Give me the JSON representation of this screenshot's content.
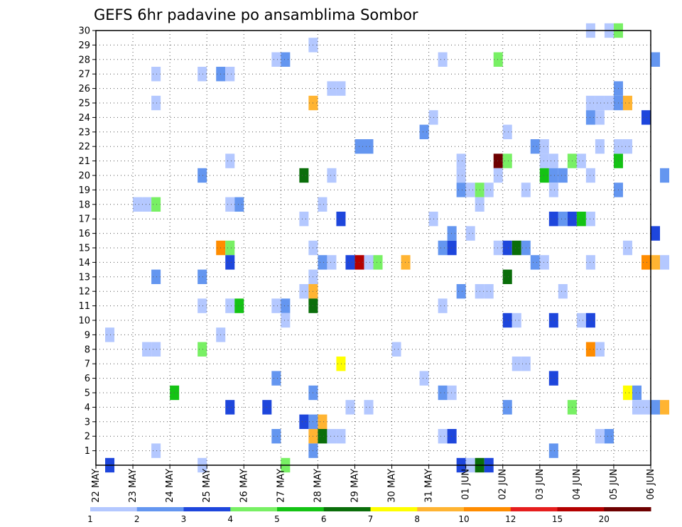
{
  "chart_data": {
    "type": "heatmap",
    "title": "GEFS 6hr padavine po ansamblima Sombor",
    "xlabel": "",
    "ylabel": "",
    "x_ticks": [
      "22 MAY",
      "23 MAY",
      "24 MAY",
      "25 MAY",
      "26 MAY",
      "27 MAY",
      "28 MAY",
      "29 MAY",
      "30 MAY",
      "31 MAY",
      "01 JUN",
      "02 JUN",
      "03 JUN",
      "04 JUN",
      "05 JUN",
      "06 JUN"
    ],
    "y_ticks": [
      "1",
      "2",
      "3",
      "4",
      "5",
      "6",
      "7",
      "8",
      "9",
      "10",
      "11",
      "12",
      "13",
      "14",
      "15",
      "16",
      "17",
      "18",
      "19",
      "20",
      "21",
      "22",
      "23",
      "24",
      "25",
      "26",
      "27",
      "28",
      "29",
      "30"
    ],
    "xlim_days": [
      0,
      15
    ],
    "ylim": [
      0,
      30
    ],
    "grid": true,
    "legend": {
      "placement": "bottom",
      "labels": [
        "1",
        "2",
        "3",
        "4",
        "5",
        "6",
        "7",
        "8",
        "10",
        "12",
        "15",
        "20"
      ],
      "colors": [
        "#b4c8ff",
        "#6496f0",
        "#1e46dc",
        "#78f064",
        "#14c314",
        "#0a6e0a",
        "#ffff00",
        "#ffb432",
        "#ff8c00",
        "#e61e1e",
        "#b40000",
        "#6e0000"
      ]
    },
    "cells_format": "[day_offset_from_22_MAY, member, level_index]",
    "cells": [
      [
        0.25,
        9,
        0
      ],
      [
        0.25,
        0,
        2
      ],
      [
        1.0,
        18,
        0
      ],
      [
        1.25,
        18,
        0
      ],
      [
        1.5,
        18,
        3
      ],
      [
        1.25,
        8,
        0
      ],
      [
        1.5,
        8,
        0
      ],
      [
        1.5,
        27,
        0
      ],
      [
        1.5,
        25,
        0
      ],
      [
        1.5,
        13,
        1
      ],
      [
        1.5,
        1,
        0
      ],
      [
        2.0,
        5,
        4
      ],
      [
        2.75,
        27,
        0
      ],
      [
        2.75,
        13,
        1
      ],
      [
        2.75,
        11,
        0
      ],
      [
        2.75,
        8,
        3
      ],
      [
        2.75,
        0,
        0
      ],
      [
        2.75,
        20,
        1
      ],
      [
        3.25,
        27,
        1
      ],
      [
        3.5,
        27,
        0
      ],
      [
        3.5,
        21,
        0
      ],
      [
        3.5,
        18,
        0
      ],
      [
        3.75,
        18,
        1
      ],
      [
        3.25,
        15,
        8
      ],
      [
        3.5,
        15,
        3
      ],
      [
        3.5,
        14,
        2
      ],
      [
        3.5,
        11,
        0
      ],
      [
        3.75,
        11,
        4
      ],
      [
        3.25,
        9,
        0
      ],
      [
        3.5,
        4,
        2
      ],
      [
        4.5,
        4,
        2
      ],
      [
        4.75,
        28,
        0
      ],
      [
        5.0,
        28,
        1
      ],
      [
        4.75,
        11,
        0
      ],
      [
        5.0,
        11,
        1
      ],
      [
        5.0,
        10,
        0
      ],
      [
        4.75,
        6,
        1
      ],
      [
        4.75,
        2,
        1
      ],
      [
        5.0,
        0,
        3
      ],
      [
        5.5,
        20,
        5
      ],
      [
        5.5,
        17,
        0
      ],
      [
        5.5,
        12,
        0
      ],
      [
        5.5,
        3,
        2
      ],
      [
        5.75,
        3,
        1
      ],
      [
        5.75,
        29,
        0
      ],
      [
        5.75,
        25,
        7
      ],
      [
        5.75,
        15,
        0
      ],
      [
        5.75,
        13,
        0
      ],
      [
        5.75,
        12,
        7
      ],
      [
        5.75,
        11,
        5
      ],
      [
        5.75,
        5,
        1
      ],
      [
        5.75,
        2,
        7
      ],
      [
        5.75,
        1,
        1
      ],
      [
        6.0,
        3,
        7
      ],
      [
        6.0,
        2,
        5
      ],
      [
        6.0,
        14,
        1
      ],
      [
        6.0,
        18,
        0
      ],
      [
        6.25,
        14,
        0
      ],
      [
        6.25,
        20,
        0
      ],
      [
        6.25,
        26,
        0
      ],
      [
        6.5,
        26,
        0
      ],
      [
        6.25,
        2,
        0
      ],
      [
        6.5,
        2,
        0
      ],
      [
        6.5,
        17,
        2
      ],
      [
        6.5,
        7,
        6
      ],
      [
        6.75,
        14,
        2
      ],
      [
        7.0,
        14,
        10
      ],
      [
        7.25,
        14,
        0
      ],
      [
        7.5,
        14,
        3
      ],
      [
        6.75,
        4,
        0
      ],
      [
        7.25,
        4,
        0
      ],
      [
        7.0,
        22,
        1
      ],
      [
        7.25,
        22,
        1
      ],
      [
        8.25,
        14,
        7
      ],
      [
        8.0,
        8,
        0
      ],
      [
        8.75,
        6,
        0
      ],
      [
        8.75,
        23,
        1
      ],
      [
        9.0,
        24,
        0
      ],
      [
        9.0,
        17,
        0
      ],
      [
        9.25,
        15,
        1
      ],
      [
        9.5,
        15,
        2
      ],
      [
        9.5,
        16,
        1
      ],
      [
        9.25,
        5,
        1
      ],
      [
        9.5,
        5,
        0
      ],
      [
        9.25,
        11,
        0
      ],
      [
        9.25,
        28,
        0
      ],
      [
        9.25,
        2,
        0
      ],
      [
        9.5,
        2,
        2
      ],
      [
        9.75,
        21,
        0
      ],
      [
        9.75,
        20,
        0
      ],
      [
        9.75,
        19,
        1
      ],
      [
        10.0,
        19,
        0
      ],
      [
        10.25,
        19,
        3
      ],
      [
        10.5,
        19,
        0
      ],
      [
        9.75,
        12,
        1
      ],
      [
        9.75,
        0,
        2
      ],
      [
        10.0,
        0,
        0
      ],
      [
        10.25,
        0,
        5
      ],
      [
        10.5,
        0,
        2
      ],
      [
        10.0,
        16,
        0
      ],
      [
        10.25,
        12,
        0
      ],
      [
        10.5,
        12,
        0
      ],
      [
        10.75,
        28,
        3
      ],
      [
        10.75,
        21,
        11
      ],
      [
        11.0,
        21,
        3
      ],
      [
        10.75,
        20,
        0
      ],
      [
        10.75,
        15,
        0
      ],
      [
        11.0,
        15,
        2
      ],
      [
        11.25,
        15,
        5
      ],
      [
        11.5,
        15,
        1
      ],
      [
        10.25,
        18,
        0
      ],
      [
        11.0,
        13,
        5
      ],
      [
        11.0,
        10,
        2
      ],
      [
        11.25,
        10,
        0
      ],
      [
        11.0,
        23,
        0
      ],
      [
        11.0,
        4,
        1
      ],
      [
        11.25,
        7,
        0
      ],
      [
        11.5,
        7,
        0
      ],
      [
        11.5,
        19,
        0
      ],
      [
        11.75,
        14,
        1
      ],
      [
        12.0,
        14,
        0
      ],
      [
        11.75,
        22,
        1
      ],
      [
        12.0,
        22,
        0
      ],
      [
        12.0,
        21,
        0
      ],
      [
        12.25,
        21,
        0
      ],
      [
        12.0,
        20,
        4
      ],
      [
        12.25,
        20,
        1
      ],
      [
        12.5,
        20,
        1
      ],
      [
        12.25,
        19,
        0
      ],
      [
        12.25,
        17,
        2
      ],
      [
        12.5,
        17,
        1
      ],
      [
        12.75,
        17,
        2
      ],
      [
        13.0,
        17,
        4
      ],
      [
        13.25,
        17,
        0
      ],
      [
        12.25,
        10,
        2
      ],
      [
        12.25,
        6,
        2
      ],
      [
        12.25,
        1,
        1
      ],
      [
        12.5,
        12,
        0
      ],
      [
        12.75,
        21,
        3
      ],
      [
        13.0,
        21,
        0
      ],
      [
        12.75,
        4,
        3
      ],
      [
        13.25,
        25,
        0
      ],
      [
        13.5,
        25,
        0
      ],
      [
        13.75,
        25,
        0
      ],
      [
        14.0,
        25,
        1
      ],
      [
        14.25,
        25,
        7
      ],
      [
        13.25,
        24,
        1
      ],
      [
        13.5,
        24,
        0
      ],
      [
        14.0,
        26,
        1
      ],
      [
        13.25,
        20,
        0
      ],
      [
        13.5,
        22,
        0
      ],
      [
        13.25,
        14,
        0
      ],
      [
        13.0,
        10,
        0
      ],
      [
        13.25,
        10,
        2
      ],
      [
        13.25,
        8,
        8
      ],
      [
        13.5,
        8,
        0
      ],
      [
        13.5,
        2,
        0
      ],
      [
        13.75,
        2,
        1
      ],
      [
        14.0,
        21,
        4
      ],
      [
        14.0,
        19,
        1
      ],
      [
        14.0,
        22,
        0
      ],
      [
        14.25,
        22,
        0
      ],
      [
        13.25,
        30,
        0
      ],
      [
        13.75,
        30,
        0
      ],
      [
        14.0,
        30,
        3
      ],
      [
        14.25,
        5,
        6
      ],
      [
        14.5,
        5,
        1
      ],
      [
        14.5,
        4,
        0
      ],
      [
        14.75,
        4,
        0
      ],
      [
        14.25,
        15,
        0
      ],
      [
        14.75,
        24,
        2
      ],
      [
        14.75,
        14,
        8
      ],
      [
        15.0,
        14,
        7
      ],
      [
        15.25,
        14,
        0
      ],
      [
        15.0,
        28,
        1
      ],
      [
        15.0,
        16,
        2
      ],
      [
        15.0,
        4,
        1
      ],
      [
        15.25,
        4,
        7
      ],
      [
        15.25,
        20,
        1
      ]
    ]
  }
}
